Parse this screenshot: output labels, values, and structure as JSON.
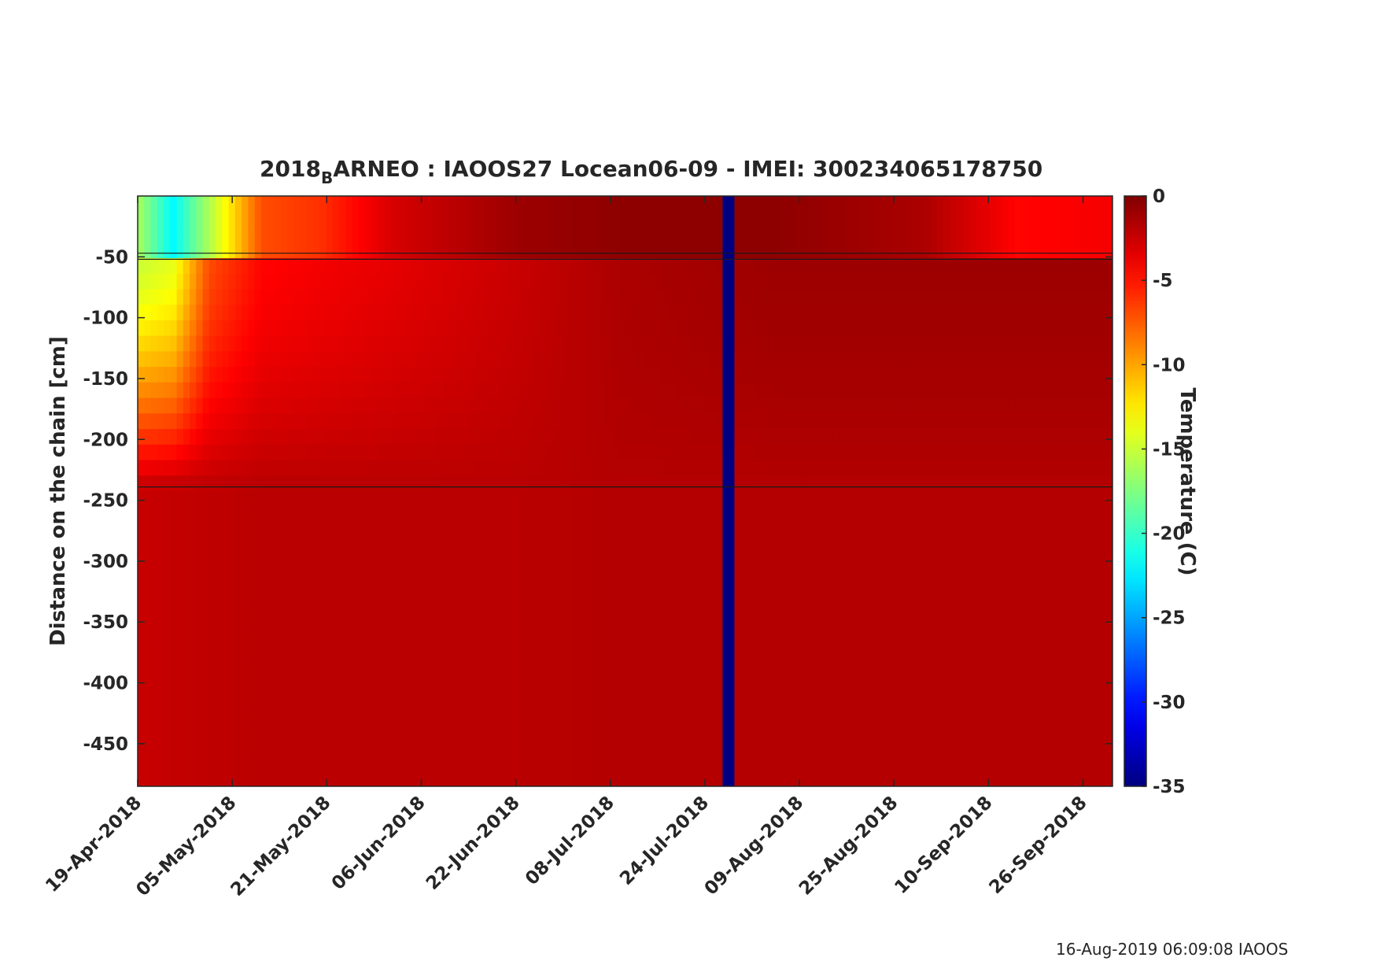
{
  "chart_data": {
    "type": "heatmap",
    "title": {
      "prefix": "2018",
      "subscript": "B",
      "rest": "ARNEO : IAOOS27  Locean06-09 - IMEI: 300234065178750"
    },
    "xlabel": "",
    "ylabel": "Distance on the chain [cm]",
    "x_range": [
      "2018-04-19",
      "2018-10-01"
    ],
    "x_tick_labels": [
      "19-Apr-2018",
      "05-May-2018",
      "21-May-2018",
      "06-Jun-2018",
      "22-Jun-2018",
      "08-Jul-2018",
      "24-Jul-2018",
      "09-Aug-2018",
      "25-Aug-2018",
      "10-Sep-2018",
      "26-Sep-2018"
    ],
    "ylim": [
      -485,
      0
    ],
    "y_ticks": [
      -50,
      -100,
      -150,
      -200,
      -250,
      -300,
      -350,
      -400,
      -450
    ],
    "y_tick_labels": [
      "-50",
      "-100",
      "-150",
      "-200",
      "-250",
      "-300",
      "-350",
      "-400",
      "-450"
    ],
    "colorbar": {
      "label": "Temperature (C)",
      "range": [
        -35,
        0
      ],
      "ticks": [
        0,
        -5,
        -10,
        -15,
        -20,
        -25,
        -30,
        -35
      ],
      "tick_labels": [
        "0",
        "-5",
        "-10",
        "-15",
        "-20",
        "-25",
        "-30",
        "-35"
      ],
      "colormap": "jet"
    },
    "reference_lines_depth_cm": [
      -47,
      -52,
      -239
    ],
    "field_description": {
      "air_layer_top_cm": [
        0,
        -52
      ],
      "snow_ice_layer_cm": [
        -52,
        -239
      ],
      "water_layer_cm": [
        -239,
        -485
      ],
      "missing_data_periods": [
        [
          "2018-07-27",
          "2018-07-29"
        ]
      ]
    },
    "profiles": [
      {
        "date": "2018-04-19",
        "top": -16,
        "ice": -15,
        "water": -2.5
      },
      {
        "date": "2018-04-25",
        "top": -22,
        "ice": -14,
        "water": -2.3
      },
      {
        "date": "2018-05-01",
        "top": -16,
        "ice": -7,
        "water": -2.2
      },
      {
        "date": "2018-05-10",
        "top": -7,
        "ice": -4.5,
        "water": -2.0
      },
      {
        "date": "2018-05-20",
        "top": -6,
        "ice": -4,
        "water": -2.0
      },
      {
        "date": "2018-06-01",
        "top": -3,
        "ice": -3.5,
        "water": -2.0
      },
      {
        "date": "2018-06-22",
        "top": -1,
        "ice": -2.5,
        "water": -2.0
      },
      {
        "date": "2018-07-10",
        "top": -0.5,
        "ice": -1.5,
        "water": -1.8
      },
      {
        "date": "2018-08-05",
        "top": -0.5,
        "ice": -1.0,
        "water": -1.8
      },
      {
        "date": "2018-08-30",
        "top": -1.5,
        "ice": -1.0,
        "water": -1.8
      },
      {
        "date": "2018-09-15",
        "top": -4.5,
        "ice": -1.0,
        "water": -1.8
      },
      {
        "date": "2018-10-01",
        "top": -4,
        "ice": -1.0,
        "water": -1.8
      }
    ]
  },
  "footer": "16-Aug-2019 06:09:08 IAOOS"
}
